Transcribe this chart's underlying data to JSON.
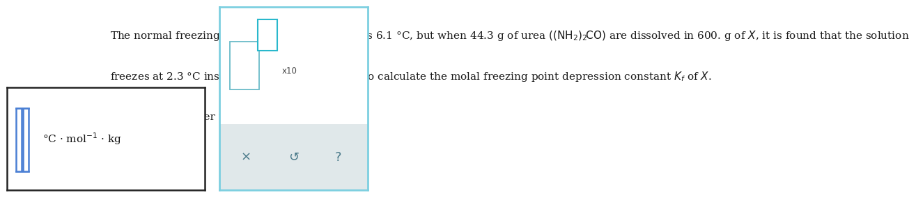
{
  "bg_color": "#ffffff",
  "text_color": "#1a1a1a",
  "line1": "The normal freezing point of a certain liquid $X$ is 6.1 °C, but when 44.3 g of urea $\\left(\\left(\\mathrm{NH_2}\\right)_2\\mathrm{CO}\\right)$ are dissolved in 600. g of $X$, it is found that the solution",
  "line2": "freezes at 2.3 °C instead. Use this information to calculate the molal freezing point depression constant $K_f$ of $X$.",
  "line3": "Round your answer to 2 significant digits.",
  "fontsize": 11.0,
  "input_cursor_color": "#4a7fd4",
  "border_color_dark": "#222222",
  "border_color_light": "#7dcfe0",
  "checkbox_color": "#555555",
  "cyan_box_color": "#29b8cc",
  "gray_bg": "#e0e8ea",
  "bottom_icon_color": "#4a7a8a"
}
